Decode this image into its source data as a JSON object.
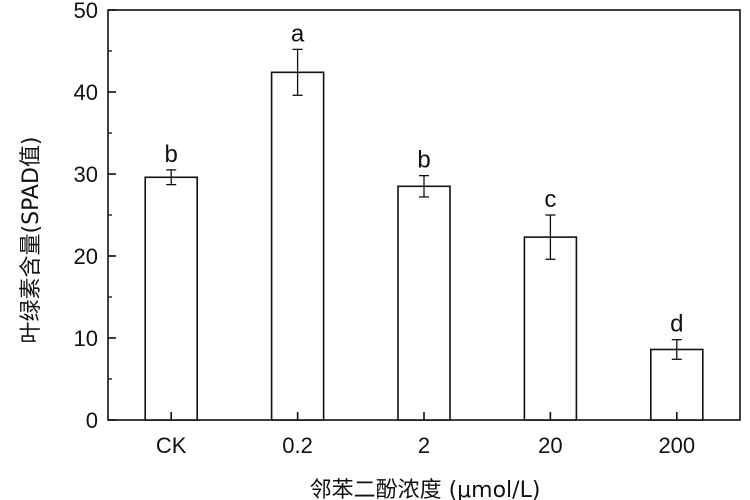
{
  "chart_data": {
    "type": "bar",
    "categories": [
      "CK",
      "0.2",
      "2",
      "20",
      "200"
    ],
    "values": [
      29.6,
      42.4,
      28.5,
      22.3,
      8.6
    ],
    "errors": [
      0.9,
      2.8,
      1.3,
      2.7,
      1.2
    ],
    "significance_labels": [
      "b",
      "a",
      "b",
      "c",
      "d"
    ],
    "xlabel": "邻苯二酚浓度 (μmol/L)",
    "ylabel": "叶绿素含量(SPAD值)",
    "ylim": [
      0,
      50
    ],
    "yticks": [
      "0",
      "10",
      "20",
      "30",
      "40",
      "50"
    ],
    "bar_fill": "#ffffff",
    "bar_stroke": "#111111",
    "grid": false
  }
}
